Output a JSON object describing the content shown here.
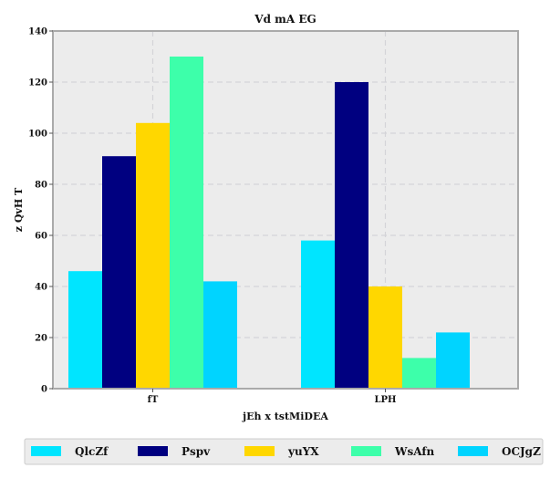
{
  "chart_data": {
    "type": "bar",
    "title": "Vd mA  EG",
    "xlabel": "jEh x tstMiDEA",
    "ylabel": "z QvH T",
    "categories": [
      "fT",
      "LPH"
    ],
    "series": [
      {
        "name": "QlcZf",
        "values": [
          46,
          58
        ],
        "color": "#00e5ff"
      },
      {
        "name": "Pspv",
        "values": [
          91,
          120
        ],
        "color": "#000080"
      },
      {
        "name": "yuYX",
        "values": [
          104,
          40
        ],
        "color": "#ffd700"
      },
      {
        "name": "WsAfn",
        "values": [
          130,
          12
        ],
        "color": "#3dffaa"
      },
      {
        "name": "OCJgZ",
        "values": [
          42,
          22
        ],
        "color": "#00d4ff"
      }
    ],
    "ylim": [
      0,
      140
    ],
    "yticks": [
      0,
      20,
      40,
      60,
      80,
      100,
      120,
      140
    ],
    "grid": true,
    "legend_position": "bottom"
  }
}
